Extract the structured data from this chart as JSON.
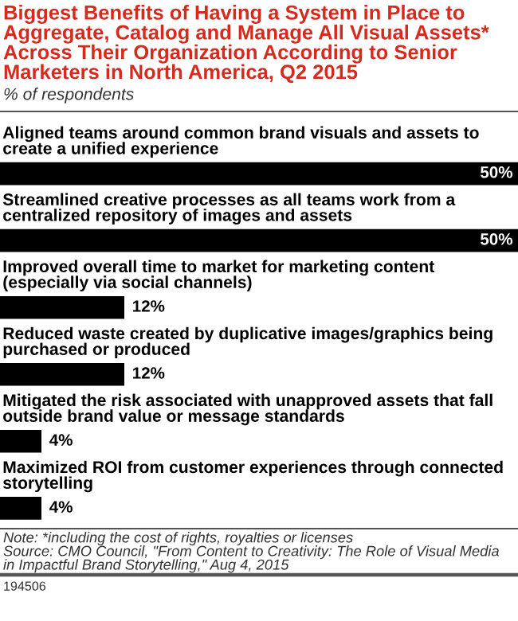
{
  "chart_data": {
    "type": "bar",
    "orientation": "horizontal",
    "title": "Biggest Benefits of Having a System in Place to\nAggregate, Catalog and Manage All Visual Assets*\nAcross Their Organization According to Senior\nMarketers in North America, Q2 2015",
    "subtitle": "% of respondents",
    "categories": [
      "Aligned teams around common brand visuals and assets to\ncreate a unified experience",
      "Streamlined creative processes as all teams work from a\ncentralized repository of images and assets",
      "Improved overall time to market for marketing content\n(especially via social channels)",
      "Reduced waste created by duplicative images/graphics being\npurchased or produced",
      "Mitigated the risk associated with unapproved assets that fall\noutside brand value or message standards",
      "Maximized ROI from customer experiences through connected\nstorytelling"
    ],
    "values": [
      50,
      50,
      12,
      12,
      4,
      4
    ],
    "color": "#000000",
    "value_labels": [
      "50%",
      "50%",
      "12%",
      "12%",
      "4%",
      "4%"
    ],
    "annotations": [
      "Note: *including the cost of rights, royalties or licenses\nSource: CMO Council, \"From Content to Creativity: The Role of Visual Media\nin Impactful Brand Storytelling,\" Aug 4, 2015",
      "194506"
    ]
  }
}
